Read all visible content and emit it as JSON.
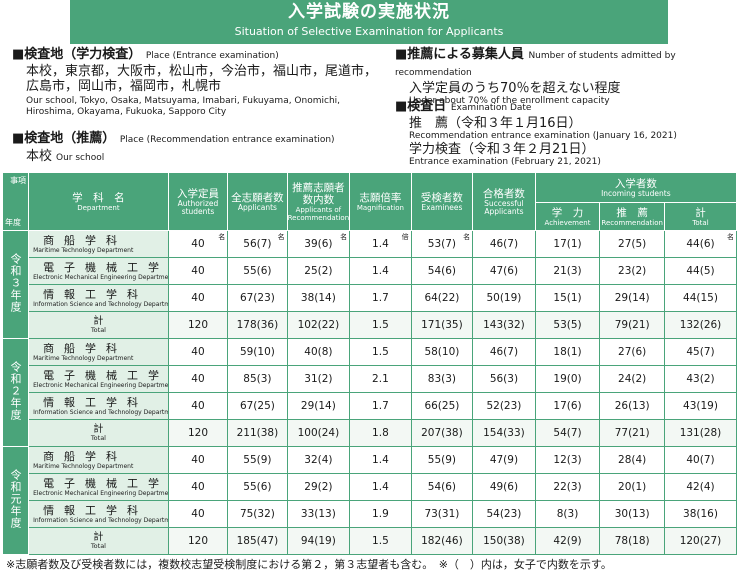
{
  "title": "入学試験の実施状況",
  "subtitle": "Situation of Selective Examination for Applicants",
  "place_exam": {
    "head": "■検査地（学力検査）",
    "head_en": "Place (Entrance examination)",
    "line1": "本校，東京都，大阪市，松山市，今治市，福山市，尾道市，",
    "line2": "広島市，岡山市，福岡市，札幌市",
    "en1": "Our school, Tokyo, Osaka, Matsuyama, Imabari, Fukuyama, Onomichi,",
    "en2": "Hiroshima, Okayama, Fukuoka, Sapporo City"
  },
  "place_rec": {
    "head": "■検査地（推薦）",
    "head_en": "Place (Recommendation entrance examination)",
    "line": "本校",
    "line_en": "Our school"
  },
  "rec_count": {
    "head": "■推薦による募集人員",
    "head_en": "Number of students admitted by recommendation",
    "line": "入学定員のうち70％を超えない程度",
    "en": "Under about 70% of the enrollment capacity"
  },
  "exam_date": {
    "head": "■検査日",
    "head_en": "Examination Date",
    "rec": "推　薦（令和３年１月16日）",
    "rec_en": "Recommendation entrance examination (January 16, 2021)",
    "ach": "学力検査（令和３年２月21日）",
    "ach_en": "Entrance examination (February 21, 2021)"
  },
  "header": {
    "corner_a": "事項",
    "corner_b": "年度",
    "dept": "学　科　名",
    "dept_en": "Department",
    "cap": "入学定員",
    "cap_en": "Authorized students",
    "app": "全志願者数",
    "app_en": "Applicants",
    "recapp": "推薦志願者数内数",
    "recapp_en": "Applicants of Recommendation",
    "mag": "志願倍率",
    "mag_en": "Magnification",
    "exm": "受検者数",
    "exm_en": "Examinees",
    "pass": "合格者数",
    "pass_en": "Successful Applicants",
    "inc": "入学者数",
    "inc_en": "Incoming students",
    "ach": "学　力",
    "ach_en": "Achievement",
    "rec": "推　薦",
    "rec_en": "Recommendation",
    "tot": "計",
    "tot_en": "Total"
  },
  "units": {
    "mei": "名",
    "bai": "倍"
  },
  "years": [
    {
      "label": "令和３年度",
      "rows": [
        {
          "jp": "商船学科",
          "en": "Maritime Technology Department",
          "v": [
            "40",
            "56(7)",
            "39(6)",
            "1.4",
            "53(7)",
            "46(7)",
            "17(1)",
            "27(5)",
            "44(6)"
          ]
        },
        {
          "jp": "電子機械工学科",
          "en": "Electronic Mechanical Engineering Department",
          "v": [
            "40",
            "55(6)",
            "25(2)",
            "1.4",
            "54(6)",
            "47(6)",
            "21(3)",
            "23(2)",
            "44(5)"
          ]
        },
        {
          "jp": "情報工学科",
          "en": "Information Science and Technology Department",
          "v": [
            "40",
            "67(23)",
            "38(14)",
            "1.7",
            "64(22)",
            "50(19)",
            "15(1)",
            "29(14)",
            "44(15)"
          ]
        },
        {
          "jp": "計",
          "en": "Total",
          "v": [
            "120",
            "178(36)",
            "102(22)",
            "1.5",
            "171(35)",
            "143(32)",
            "53(5)",
            "79(21)",
            "132(26)"
          ]
        }
      ]
    },
    {
      "label": "令和２年度",
      "rows": [
        {
          "jp": "商船学科",
          "en": "Maritime Technology Department",
          "v": [
            "40",
            "59(10)",
            "40(8)",
            "1.5",
            "58(10)",
            "46(7)",
            "18(1)",
            "27(6)",
            "45(7)"
          ]
        },
        {
          "jp": "電子機械工学科",
          "en": "Electronic Mechanical Engineering Department",
          "v": [
            "40",
            "85(3)",
            "31(2)",
            "2.1",
            "83(3)",
            "56(3)",
            "19(0)",
            "24(2)",
            "43(2)"
          ]
        },
        {
          "jp": "情報工学科",
          "en": "Information Science and Technology Department",
          "v": [
            "40",
            "67(25)",
            "29(14)",
            "1.7",
            "66(25)",
            "52(23)",
            "17(6)",
            "26(13)",
            "43(19)"
          ]
        },
        {
          "jp": "計",
          "en": "Total",
          "v": [
            "120",
            "211(38)",
            "100(24)",
            "1.8",
            "207(38)",
            "154(33)",
            "54(7)",
            "77(21)",
            "131(28)"
          ]
        }
      ]
    },
    {
      "label": "令和元年度",
      "rows": [
        {
          "jp": "商船学科",
          "en": "Maritime Technology Department",
          "v": [
            "40",
            "55(9)",
            "32(4)",
            "1.4",
            "55(9)",
            "47(9)",
            "12(3)",
            "28(4)",
            "40(7)"
          ]
        },
        {
          "jp": "電子機械工学科",
          "en": "Electronic Mechanical Engineering Department",
          "v": [
            "40",
            "55(6)",
            "29(2)",
            "1.4",
            "54(6)",
            "49(6)",
            "22(3)",
            "20(1)",
            "42(4)"
          ]
        },
        {
          "jp": "情報工学科",
          "en": "Information Science and Technology Department",
          "v": [
            "40",
            "75(32)",
            "33(13)",
            "1.9",
            "73(31)",
            "54(23)",
            "8(3)",
            "30(13)",
            "38(16)"
          ]
        },
        {
          "jp": "計",
          "en": "Total",
          "v": [
            "120",
            "185(47)",
            "94(19)",
            "1.5",
            "182(46)",
            "150(38)",
            "42(9)",
            "78(18)",
            "120(27)"
          ]
        }
      ]
    }
  ],
  "note": "※志願者数及び受検者数には，複数校志望受検制度における第２，第３志望者も含む。　※（　）内は，女子で内数を示す。"
}
